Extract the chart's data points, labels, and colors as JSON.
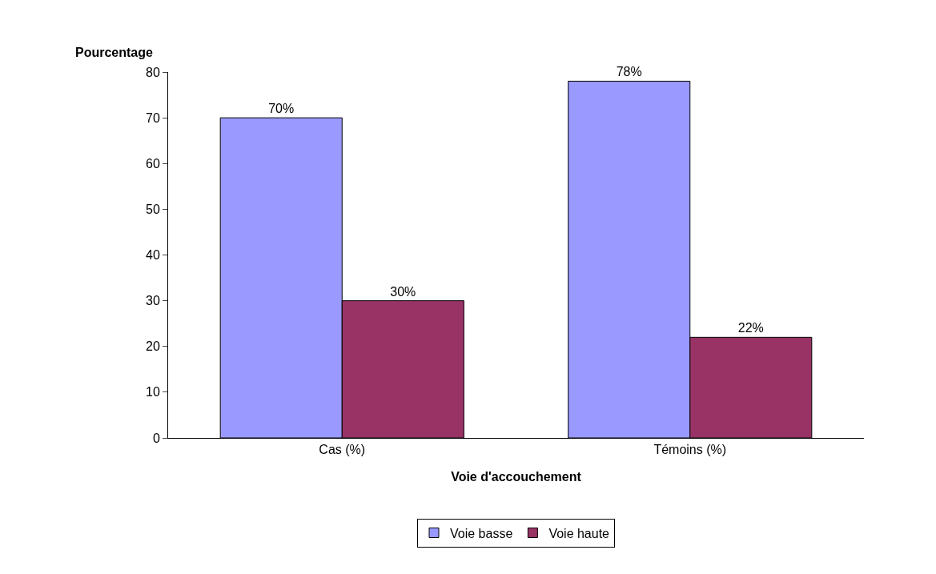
{
  "chart_data": {
    "type": "bar",
    "xlabel": "Voie d'accouchement",
    "ylabel": "Pourcentage",
    "categories": [
      "Cas (%)",
      "Témoins (%)"
    ],
    "series": [
      {
        "name": "Voie basse",
        "color": "#9999ff",
        "values": [
          70,
          78
        ],
        "value_labels": [
          "70%",
          "78%"
        ]
      },
      {
        "name": "Voie haute",
        "color": "#993366",
        "values": [
          30,
          22
        ],
        "value_labels": [
          "30%",
          "22%"
        ]
      }
    ],
    "ylim": [
      0,
      80
    ],
    "yticks": [
      0,
      10,
      20,
      30,
      40,
      50,
      60,
      70,
      80
    ],
    "grid": false,
    "legend": "bottom"
  }
}
